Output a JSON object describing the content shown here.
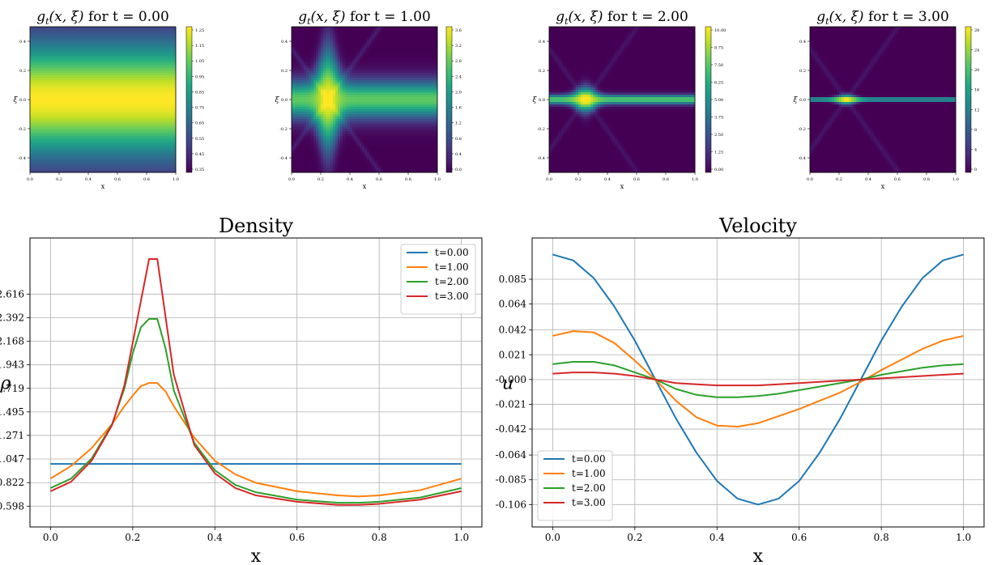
{
  "figure": {
    "heatmaps": [
      {
        "title": "g_t(x, ξ) for t = 0.00",
        "title_main": "g",
        "title_sub": "t",
        "title_args": "(x, ξ)",
        "title_suffix": " for t = 0.00",
        "xlabel": "x",
        "ylabel": "ξ",
        "xlim": [
          0,
          1
        ],
        "ylim": [
          -0.5,
          0.5
        ],
        "xticks": [
          "0.0",
          "0.2",
          "0.4",
          "0.6",
          "0.8",
          "1.0"
        ],
        "yticks": [
          "0.4",
          "0.2",
          "0.0",
          "-0.2",
          "-0.4"
        ],
        "colorbar_ticks": [
          "1.25",
          "1.15",
          "1.05",
          "0.95",
          "0.85",
          "0.75",
          "0.65",
          "0.55",
          "0.45",
          "0.35"
        ],
        "pattern": "gaussian-band",
        "band_width": 0.28
      },
      {
        "title": "g_t(x, ξ) for t = 1.00",
        "title_main": "g",
        "title_sub": "t",
        "title_args": "(x, ξ)",
        "title_suffix": " for t = 1.00",
        "xlabel": "x",
        "ylabel": "ξ",
        "xlim": [
          0,
          1
        ],
        "ylim": [
          -0.5,
          0.5
        ],
        "xticks": [
          "0.0",
          "0.2",
          "0.4",
          "0.6",
          "0.8",
          "1.0"
        ],
        "yticks": [
          "0.4",
          "0.2",
          "0.0",
          "-0.2",
          "-0.4"
        ],
        "colorbar_ticks": [
          "3.6",
          "3.2",
          "2.8",
          "2.4",
          "2.0",
          "1.6",
          "1.2",
          "0.8",
          "0.4",
          "0.0"
        ],
        "pattern": "narrowing-band",
        "band_width": 0.09,
        "bump_x": 0.25
      },
      {
        "title": "g_t(x, ξ) for t = 2.00",
        "title_main": "g",
        "title_sub": "t",
        "title_args": "(x, ξ)",
        "title_suffix": " for t = 2.00",
        "xlabel": "x",
        "ylabel": "ξ",
        "xlim": [
          0,
          1
        ],
        "ylim": [
          -0.5,
          0.5
        ],
        "xticks": [
          "0.0",
          "0.2",
          "0.4",
          "0.6",
          "0.8",
          "1.0"
        ],
        "yticks": [
          "0.4",
          "0.2",
          "0.0",
          "-0.2",
          "-0.4"
        ],
        "colorbar_ticks": [
          "10.00",
          "8.75",
          "7.50",
          "6.25",
          "5.00",
          "3.75",
          "2.50",
          "1.25",
          "0.00"
        ],
        "pattern": "thin-band",
        "band_width": 0.022,
        "bump_x": 0.25
      },
      {
        "title": "g_t(x, ξ) for t = 3.00",
        "title_main": "g",
        "title_sub": "t",
        "title_args": "(x, ξ)",
        "title_suffix": " for t = 3.00",
        "xlabel": "x",
        "ylabel": "ξ",
        "xlim": [
          0,
          1
        ],
        "ylim": [
          -0.5,
          0.5
        ],
        "xticks": [
          "0.0",
          "0.2",
          "0.4",
          "0.6",
          "0.8",
          "1.0"
        ],
        "yticks": [
          "0.4",
          "0.2",
          "0.0",
          "-0.2",
          "-0.4"
        ],
        "colorbar_ticks": [
          "28",
          "24",
          "20",
          "16",
          "12",
          "8",
          "4",
          "0"
        ],
        "pattern": "thin-band",
        "band_width": 0.008,
        "bump_x": 0.25
      }
    ]
  },
  "chart_data": [
    {
      "type": "line",
      "title": "Density",
      "xlabel": "x",
      "ylabel": "ρ",
      "xlim": [
        -0.05,
        1.05
      ],
      "ylim": [
        0.4,
        3.15
      ],
      "xticks": [
        "0.0",
        "0.2",
        "0.4",
        "0.6",
        "0.8",
        "1.0"
      ],
      "xtick_values": [
        0.0,
        0.2,
        0.4,
        0.6,
        0.8,
        1.0
      ],
      "yticks": [
        "0.598",
        "0.822",
        "1.047",
        "1.271",
        "1.495",
        "1.719",
        "1.943",
        "2.168",
        "2.392",
        "2.616"
      ],
      "ytick_values": [
        0.598,
        0.822,
        1.047,
        1.271,
        1.495,
        1.719,
        1.943,
        2.168,
        2.392,
        2.616
      ],
      "grid": true,
      "legend_position": "top-right",
      "x": [
        0.0,
        0.05,
        0.1,
        0.15,
        0.18,
        0.2,
        0.22,
        0.24,
        0.26,
        0.28,
        0.3,
        0.35,
        0.4,
        0.45,
        0.5,
        0.6,
        0.7,
        0.75,
        0.8,
        0.9,
        1.0
      ],
      "series": [
        {
          "name": "t=0.00",
          "color": "#1f77b4",
          "values": [
            1.0,
            1.0,
            1.0,
            1.0,
            1.0,
            1.0,
            1.0,
            1.0,
            1.0,
            1.0,
            1.0,
            1.0,
            1.0,
            1.0,
            1.0,
            1.0,
            1.0,
            1.0,
            1.0,
            1.0,
            1.0
          ]
        },
        {
          "name": "t=1.00",
          "color": "#ff7f0e",
          "values": [
            0.86,
            0.98,
            1.15,
            1.38,
            1.55,
            1.65,
            1.74,
            1.77,
            1.77,
            1.69,
            1.55,
            1.25,
            1.03,
            0.9,
            0.82,
            0.74,
            0.7,
            0.69,
            0.7,
            0.75,
            0.86
          ]
        },
        {
          "name": "t=2.00",
          "color": "#2ca02c",
          "values": [
            0.77,
            0.86,
            1.05,
            1.38,
            1.72,
            2.05,
            2.3,
            2.38,
            2.38,
            2.1,
            1.7,
            1.2,
            0.94,
            0.8,
            0.73,
            0.66,
            0.63,
            0.63,
            0.64,
            0.68,
            0.77
          ]
        },
        {
          "name": "t=3.00",
          "color": "#d62728",
          "values": [
            0.74,
            0.83,
            1.03,
            1.37,
            1.75,
            2.15,
            2.55,
            2.95,
            2.95,
            2.4,
            1.85,
            1.18,
            0.91,
            0.77,
            0.7,
            0.64,
            0.61,
            0.61,
            0.62,
            0.66,
            0.74
          ]
        }
      ]
    },
    {
      "type": "line",
      "title": "Velocity",
      "xlabel": "x",
      "ylabel": "u",
      "xlim": [
        -0.05,
        1.05
      ],
      "ylim": [
        -0.125,
        0.12
      ],
      "xticks": [
        "0.0",
        "0.2",
        "0.4",
        "0.6",
        "0.8",
        "1.0"
      ],
      "xtick_values": [
        0.0,
        0.2,
        0.4,
        0.6,
        0.8,
        1.0
      ],
      "yticks": [
        "0.085",
        "0.064",
        "0.042",
        "0.021",
        "-0.000",
        "-0.021",
        "-0.042",
        "-0.064",
        "-0.085",
        "-0.106"
      ],
      "ytick_values": [
        0.085,
        0.064,
        0.042,
        0.021,
        0.0,
        -0.021,
        -0.042,
        -0.064,
        -0.085,
        -0.106
      ],
      "grid": true,
      "legend_position": "bottom-left",
      "x": [
        0.0,
        0.05,
        0.1,
        0.15,
        0.2,
        0.25,
        0.3,
        0.35,
        0.4,
        0.45,
        0.5,
        0.55,
        0.6,
        0.65,
        0.7,
        0.75,
        0.8,
        0.85,
        0.9,
        0.95,
        1.0
      ],
      "series": [
        {
          "name": "t=0.00",
          "color": "#1f77b4",
          "values": [
            0.106,
            0.101,
            0.086,
            0.062,
            0.033,
            0.0,
            -0.033,
            -0.062,
            -0.086,
            -0.101,
            -0.106,
            -0.101,
            -0.086,
            -0.062,
            -0.033,
            0.0,
            0.033,
            0.062,
            0.086,
            0.101,
            0.106
          ]
        },
        {
          "name": "t=1.00",
          "color": "#ff7f0e",
          "values": [
            0.037,
            0.041,
            0.04,
            0.031,
            0.016,
            0.0,
            -0.018,
            -0.032,
            -0.039,
            -0.04,
            -0.037,
            -0.031,
            -0.025,
            -0.018,
            -0.011,
            -0.002,
            0.008,
            0.017,
            0.026,
            0.033,
            0.037
          ]
        },
        {
          "name": "t=2.00",
          "color": "#2ca02c",
          "values": [
            0.013,
            0.015,
            0.015,
            0.012,
            0.006,
            0.0,
            -0.008,
            -0.013,
            -0.015,
            -0.015,
            -0.014,
            -0.012,
            -0.009,
            -0.006,
            -0.003,
            0.0,
            0.004,
            0.007,
            0.01,
            0.012,
            0.013
          ]
        },
        {
          "name": "t=3.00",
          "color": "#d62728",
          "values": [
            0.005,
            0.006,
            0.006,
            0.005,
            0.003,
            0.0,
            -0.003,
            -0.004,
            -0.005,
            -0.005,
            -0.005,
            -0.004,
            -0.003,
            -0.002,
            -0.001,
            0.0,
            0.001,
            0.002,
            0.003,
            0.004,
            0.005
          ]
        }
      ]
    }
  ]
}
